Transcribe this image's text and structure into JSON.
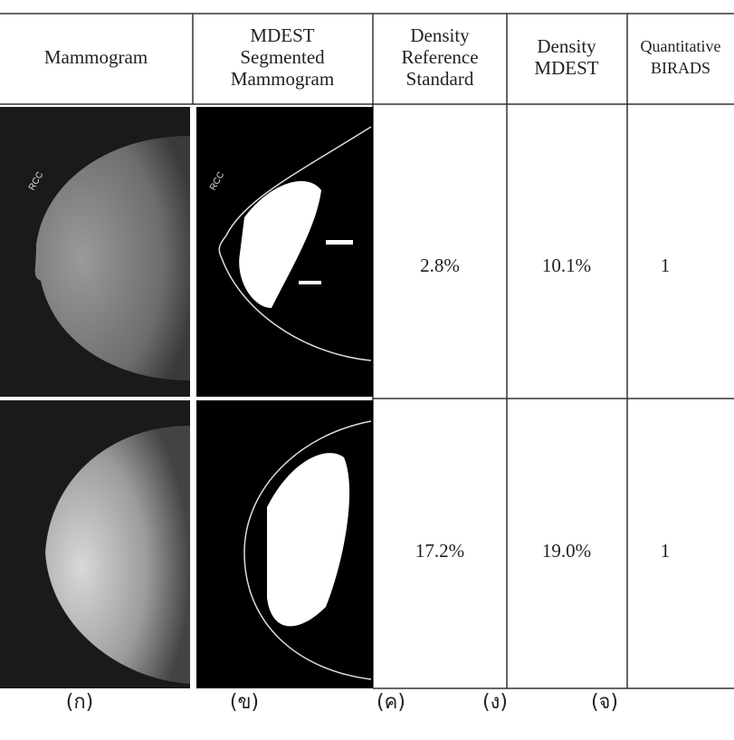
{
  "table": {
    "headers": [
      [
        "Mammogram"
      ],
      [
        "MDEST",
        "Segmented",
        "Mammogram"
      ],
      [
        "Density",
        "Reference",
        "Standard"
      ],
      [
        "Density",
        "MDEST"
      ],
      [
        "Quantitative",
        "BIRADS"
      ]
    ],
    "rows": [
      {
        "image_label": "RCC",
        "density_reference": "2.8%",
        "density_mdest": "10.1%",
        "birads": 1
      },
      {
        "density_reference": "17.2%",
        "density_mdest": "19.0%",
        "birads": 1
      }
    ]
  },
  "captions": [
    "(ก)",
    "(ข)",
    "(ค)",
    "(ง)",
    "(จ)"
  ]
}
